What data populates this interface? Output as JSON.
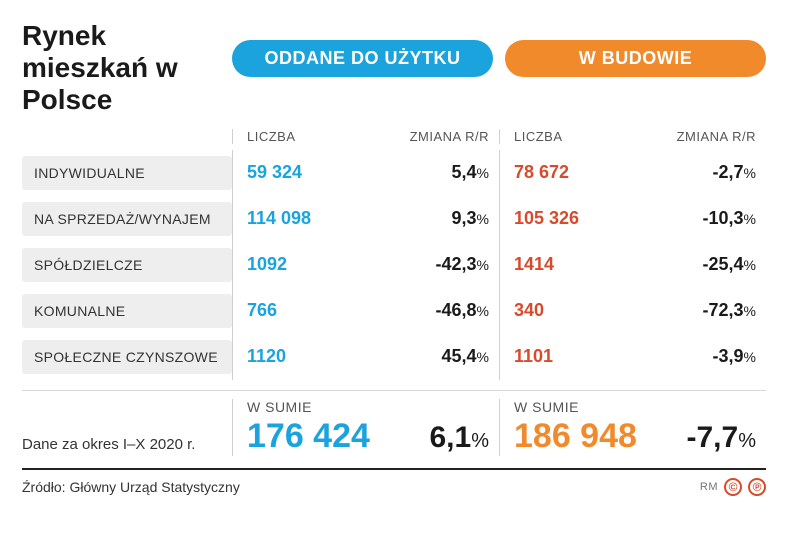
{
  "title": "Rynek mieszkań w Polsce",
  "type": "table",
  "colors": {
    "blue": "#1ba3dd",
    "orange_pill": "#f08a2b",
    "orange_text": "#d94a2b",
    "row_bg": "#eeeeee",
    "text": "#1a1a1a",
    "muted": "#555555",
    "divider_light": "#d8d8d8",
    "divider_heavy": "#222222",
    "background": "#ffffff"
  },
  "typography": {
    "title_fontsize": 28,
    "pill_fontsize": 18,
    "header_fontsize": 13,
    "category_fontsize": 14,
    "value_fontsize": 18,
    "sum_num_fontsize": 34,
    "sum_change_fontsize": 30,
    "font_family": "Arial"
  },
  "pills": {
    "completed": "ODDANE DO UŻYTKU",
    "under_construction": "W BUDOWIE"
  },
  "column_headers": {
    "count": "LICZBA",
    "change": "ZMIANA R/R"
  },
  "rows": [
    {
      "category": "INDYWIDUALNE",
      "completed_count": "59 324",
      "completed_change": "5,4",
      "construction_count": "78 672",
      "construction_change": "-2,7"
    },
    {
      "category": "NA SPRZEDAŻ/WYNAJEM",
      "completed_count": "114 098",
      "completed_change": "9,3",
      "construction_count": "105 326",
      "construction_change": "-10,3"
    },
    {
      "category": "SPÓŁDZIELCZE",
      "completed_count": "1092",
      "completed_change": "-42,3",
      "construction_count": "1414",
      "construction_change": "-25,4"
    },
    {
      "category": "KOMUNALNE",
      "completed_count": "766",
      "completed_change": "-46,8",
      "construction_count": "340",
      "construction_change": "-72,3"
    },
    {
      "category": "SPOŁECZNE CZYNSZOWE",
      "completed_count": "1120",
      "completed_change": "45,4",
      "construction_count": "1101",
      "construction_change": "-3,9"
    }
  ],
  "period_note": "Dane za okres I–X 2020 r.",
  "summary": {
    "label": "W SUMIE",
    "completed_total": "176 424",
    "completed_change": "6,1",
    "construction_total": "186 948",
    "construction_change": "-7,7"
  },
  "source": "Źródło: Główny Urząd Statystyczny",
  "footer_badges": {
    "rm": "RM",
    "c": "©",
    "p": "℗"
  }
}
